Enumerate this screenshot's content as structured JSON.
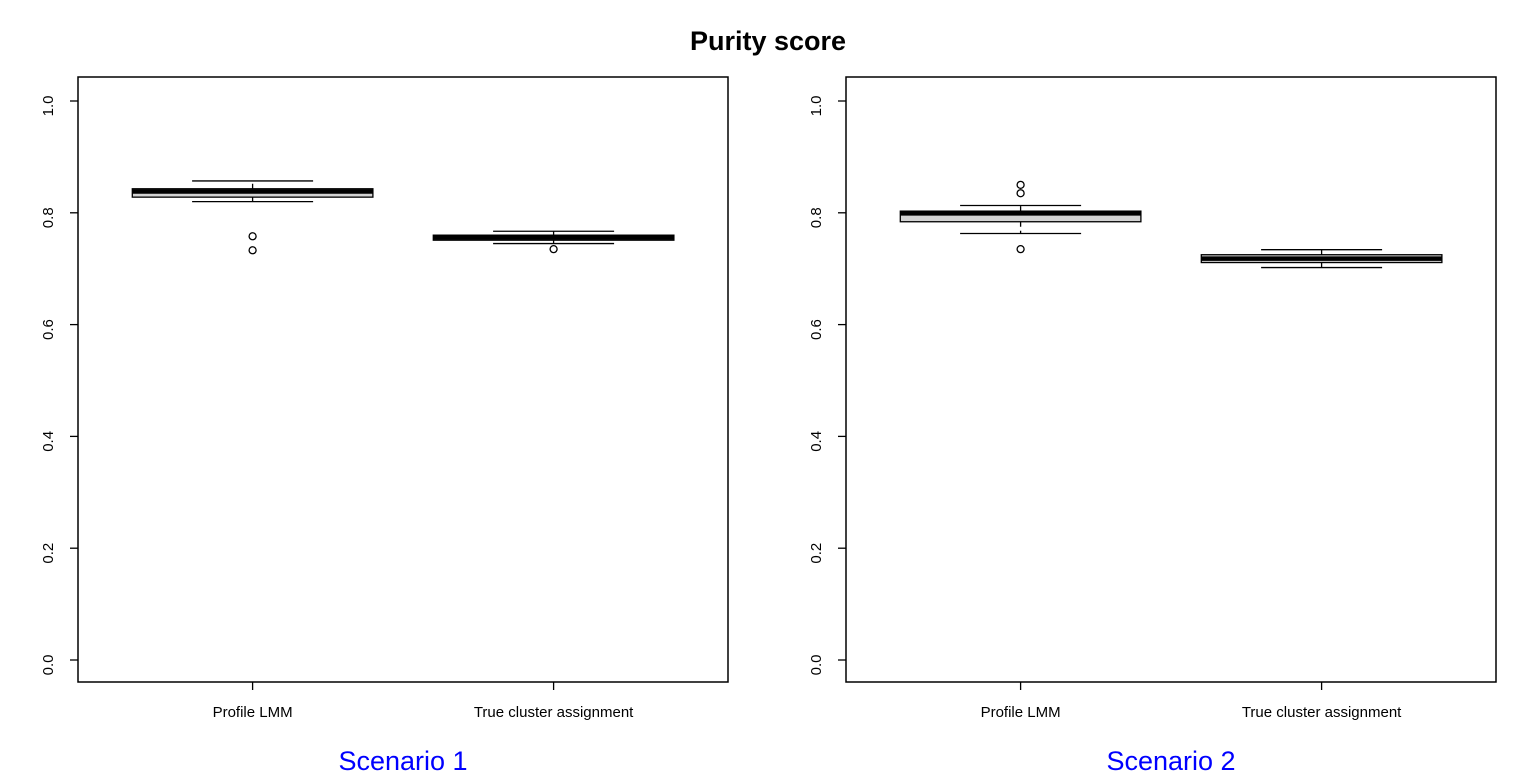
{
  "title": "Purity score",
  "colors": {
    "panel_label": "#0000ff",
    "box_fill": "#d3d3d3",
    "line": "#000000",
    "background": "#ffffff"
  },
  "chart_data": [
    {
      "type": "boxplot",
      "panel_label": "Scenario 1",
      "categories": [
        "Profile LMM",
        "True cluster assignment"
      ],
      "ylim": [
        0.0,
        1.0
      ],
      "yticks": [
        0.0,
        0.2,
        0.4,
        0.6,
        0.8,
        1.0
      ],
      "grid": "off",
      "series": [
        {
          "name": "Profile LMM",
          "whisker_low": 0.82,
          "q1": 0.828,
          "median": 0.838,
          "q3": 0.843,
          "whisker_high": 0.857,
          "outliers": [
            0.758,
            0.733
          ]
        },
        {
          "name": "True cluster assignment",
          "whisker_low": 0.745,
          "q1": 0.751,
          "median": 0.756,
          "q3": 0.76,
          "whisker_high": 0.767,
          "outliers": [
            0.735
          ]
        }
      ]
    },
    {
      "type": "boxplot",
      "panel_label": "Scenario 2",
      "categories": [
        "Profile LMM",
        "True cluster assignment"
      ],
      "ylim": [
        0.0,
        1.0
      ],
      "yticks": [
        0.0,
        0.2,
        0.4,
        0.6,
        0.8,
        1.0
      ],
      "grid": "off",
      "series": [
        {
          "name": "Profile LMM",
          "whisker_low": 0.763,
          "q1": 0.784,
          "median": 0.799,
          "q3": 0.803,
          "whisker_high": 0.813,
          "outliers": [
            0.85,
            0.835,
            0.735
          ]
        },
        {
          "name": "True cluster assignment",
          "whisker_low": 0.702,
          "q1": 0.711,
          "median": 0.718,
          "q3": 0.725,
          "whisker_high": 0.734,
          "outliers": []
        }
      ]
    }
  ]
}
